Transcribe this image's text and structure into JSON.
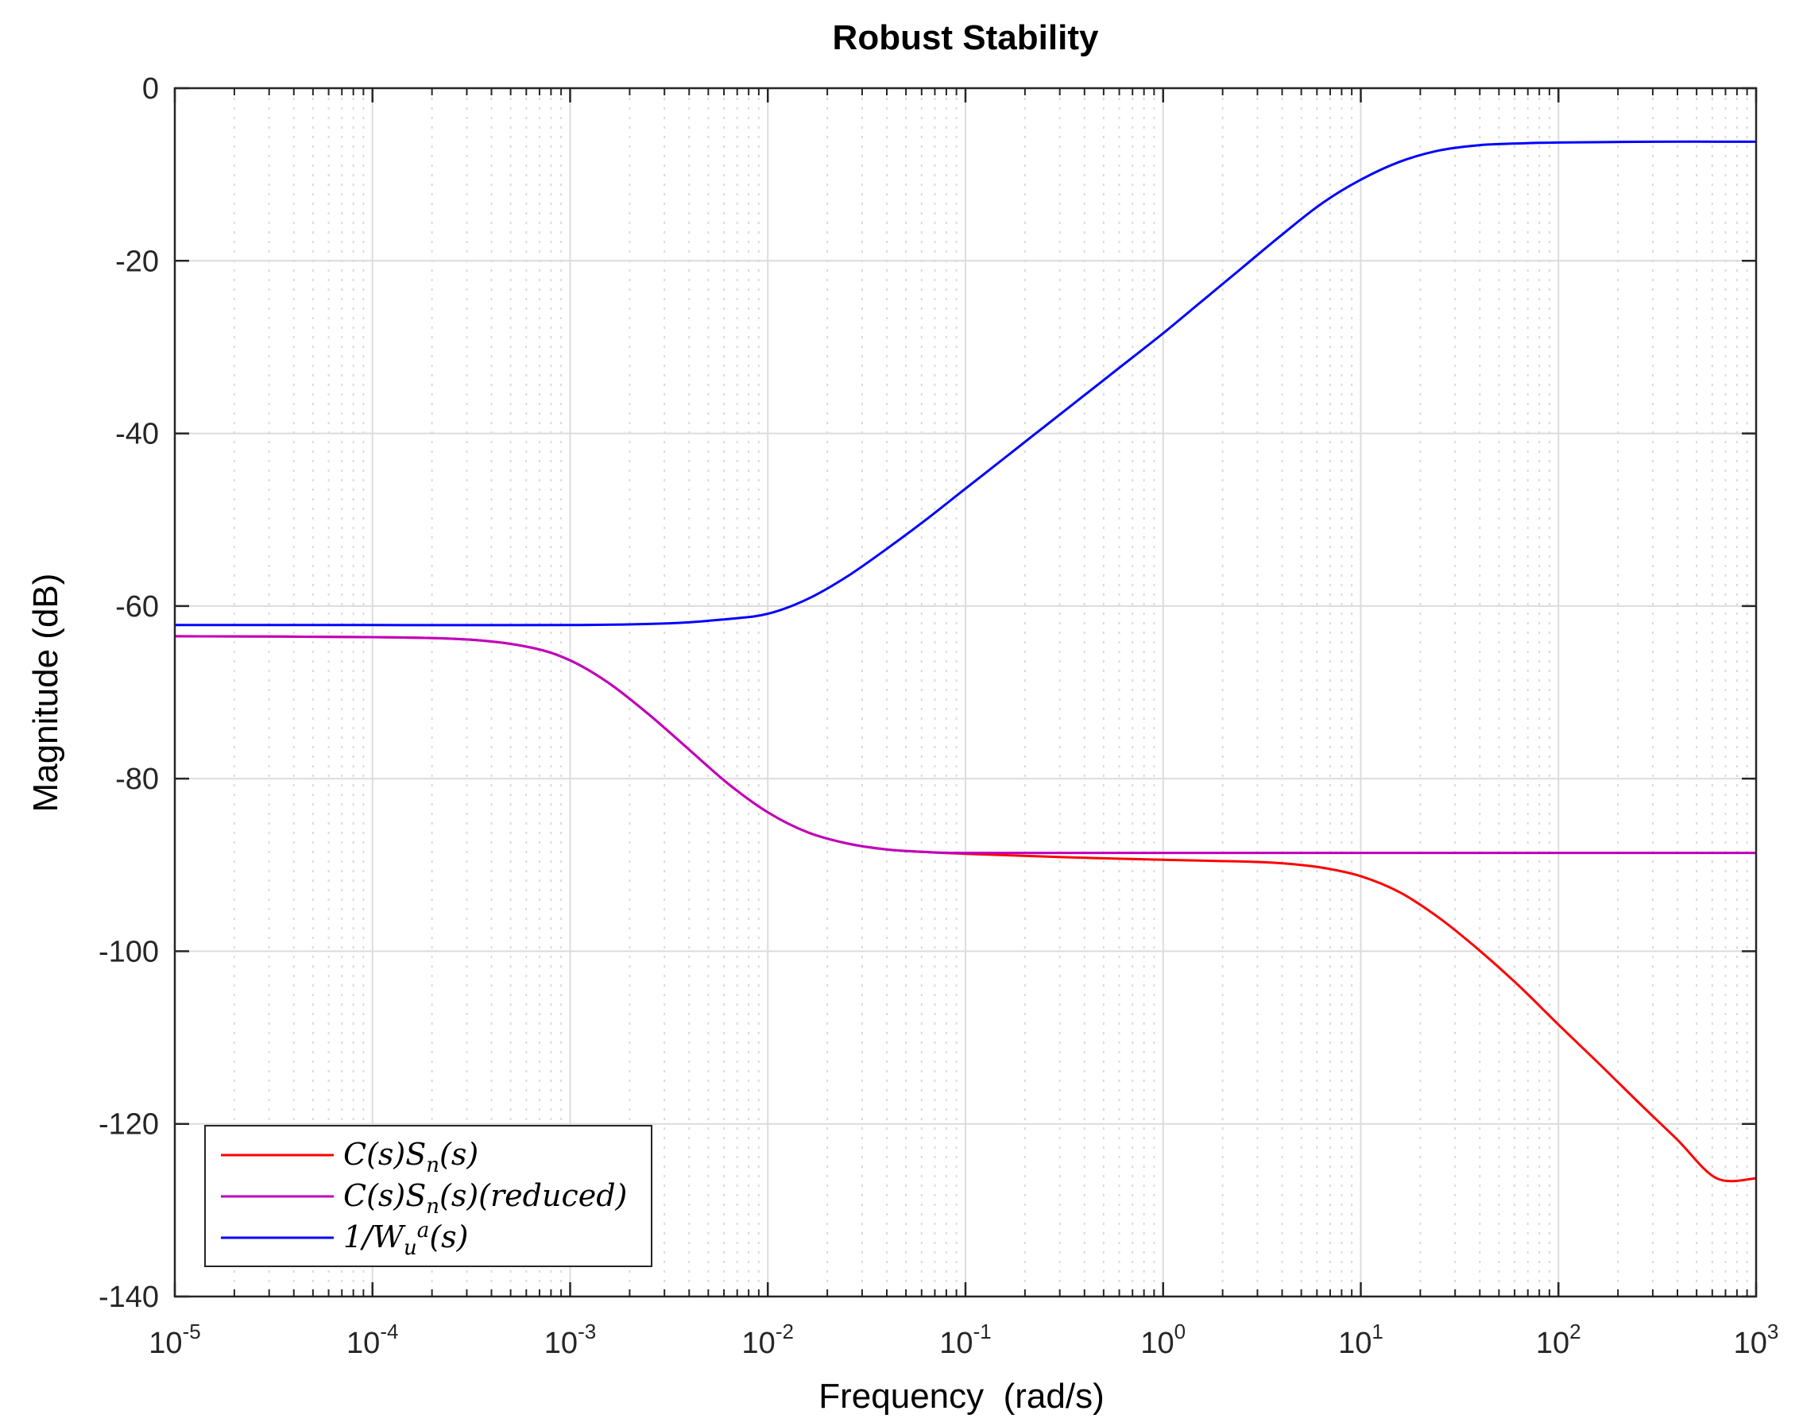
{
  "chart_data": {
    "type": "line",
    "title": "Robust Stability",
    "xlabel": "Frequency  (rad/s)",
    "ylabel": "Magnitude (dB)",
    "xscale": "log",
    "xlim_exp": [
      -5,
      3
    ],
    "ylim": [
      -140,
      0
    ],
    "yticks": [
      0,
      -20,
      -40,
      -60,
      -80,
      -100,
      -120,
      -140
    ],
    "xticks": [
      {
        "base": "10",
        "exp": "-5"
      },
      {
        "base": "10",
        "exp": "-4"
      },
      {
        "base": "10",
        "exp": "-3"
      },
      {
        "base": "10",
        "exp": "-2"
      },
      {
        "base": "10",
        "exp": "-1"
      },
      {
        "base": "10",
        "exp": "0"
      },
      {
        "base": "10",
        "exp": "1"
      },
      {
        "base": "10",
        "exp": "2"
      },
      {
        "base": "10",
        "exp": "3"
      }
    ],
    "grid": true,
    "legend_position": "bottom-left",
    "series": [
      {
        "name": "C(s)S_n(s)",
        "legend": {
          "p1": "C(s)S",
          "sub": "n",
          "p2": "(s)",
          "sup": ""
        },
        "color": "#ff0000",
        "points": [
          [
            -5,
            -63.5
          ],
          [
            -4,
            -63.6
          ],
          [
            -3.5,
            -63.9
          ],
          [
            -3.2,
            -64.8
          ],
          [
            -3,
            -66.3
          ],
          [
            -2.8,
            -69.0
          ],
          [
            -2.6,
            -72.6
          ],
          [
            -2.4,
            -76.6
          ],
          [
            -2.2,
            -80.6
          ],
          [
            -2.0,
            -83.9
          ],
          [
            -1.8,
            -86.2
          ],
          [
            -1.6,
            -87.5
          ],
          [
            -1.4,
            -88.2
          ],
          [
            -1.2,
            -88.5
          ],
          [
            -1.0,
            -88.7
          ],
          [
            -0.5,
            -89.1
          ],
          [
            0,
            -89.4
          ],
          [
            0.4,
            -89.6
          ],
          [
            0.6,
            -89.8
          ],
          [
            0.8,
            -90.3
          ],
          [
            1.0,
            -91.3
          ],
          [
            1.2,
            -93.2
          ],
          [
            1.4,
            -96.2
          ],
          [
            1.6,
            -99.9
          ],
          [
            1.8,
            -104.0
          ],
          [
            2.0,
            -108.5
          ],
          [
            2.2,
            -112.9
          ],
          [
            2.4,
            -117.4
          ],
          [
            2.6,
            -121.8
          ],
          [
            2.8,
            -126.3
          ],
          [
            3.0,
            -126.3
          ]
        ]
      },
      {
        "name": "C(s)S_n(s)(reduced)",
        "legend": {
          "p1": "C(s)S",
          "sub": "n",
          "p2": "(s)(reduced)",
          "sup": ""
        },
        "color": "#bf00bf",
        "points": [
          [
            -5,
            -63.5
          ],
          [
            -4,
            -63.6
          ],
          [
            -3.5,
            -63.9
          ],
          [
            -3.2,
            -64.8
          ],
          [
            -3,
            -66.3
          ],
          [
            -2.8,
            -69.0
          ],
          [
            -2.6,
            -72.6
          ],
          [
            -2.4,
            -76.6
          ],
          [
            -2.2,
            -80.6
          ],
          [
            -2.0,
            -83.9
          ],
          [
            -1.8,
            -86.2
          ],
          [
            -1.6,
            -87.5
          ],
          [
            -1.4,
            -88.2
          ],
          [
            -1.2,
            -88.5
          ],
          [
            -1.0,
            -88.6
          ],
          [
            0,
            -88.6
          ],
          [
            1,
            -88.6
          ],
          [
            2,
            -88.6
          ],
          [
            3,
            -88.6
          ]
        ]
      },
      {
        "name": "1/W_u^a(s)",
        "legend": {
          "p1": "1/W",
          "sub": "u",
          "p2": "(s)",
          "sup": "a"
        },
        "color": "#0000ff",
        "points": [
          [
            -5,
            -62.2
          ],
          [
            -4,
            -62.2
          ],
          [
            -3,
            -62.2
          ],
          [
            -2.5,
            -62.0
          ],
          [
            -2.2,
            -61.5
          ],
          [
            -2.0,
            -60.9
          ],
          [
            -1.8,
            -59.2
          ],
          [
            -1.6,
            -56.6
          ],
          [
            -1.4,
            -53.4
          ],
          [
            -1.2,
            -50.0
          ],
          [
            -1.0,
            -46.4
          ],
          [
            -0.8,
            -42.8
          ],
          [
            -0.6,
            -39.2
          ],
          [
            -0.4,
            -35.6
          ],
          [
            -0.2,
            -32.0
          ],
          [
            0,
            -28.4
          ],
          [
            0.2,
            -24.6
          ],
          [
            0.4,
            -20.8
          ],
          [
            0.6,
            -17.0
          ],
          [
            0.8,
            -13.4
          ],
          [
            1.0,
            -10.6
          ],
          [
            1.2,
            -8.5
          ],
          [
            1.4,
            -7.2
          ],
          [
            1.6,
            -6.6
          ],
          [
            1.8,
            -6.4
          ],
          [
            2.0,
            -6.3
          ],
          [
            2.5,
            -6.2
          ],
          [
            3.0,
            -6.2
          ]
        ]
      }
    ]
  }
}
